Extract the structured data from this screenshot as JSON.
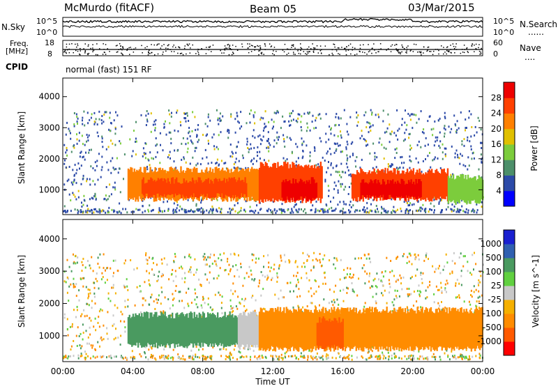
{
  "header": {
    "station": "McMurdo (fitACF)",
    "beam": "Beam 05",
    "date": "03/Mar/2015"
  },
  "strips": {
    "nsky_label": "N.Sky",
    "nsearch_label": "N.Search",
    "nsky_ticks": [
      "10^5",
      "10^0"
    ],
    "nsearch_ticks": [
      "10^5",
      "10^0"
    ],
    "freq_label": "Freq.",
    "freq_unit": "[MHz]",
    "freq_ticks": [
      "18",
      "8"
    ],
    "nave_label": "Nave",
    "nave_ticks": [
      "60",
      "0"
    ],
    "cpid_label": "CPID",
    "mode_text": "normal (fast) 151 RF",
    "dots": "......",
    "dots2": "...."
  },
  "colors": {
    "power": [
      "#0000ff",
      "#2c4aa8",
      "#4d8f6a",
      "#7ccc3c",
      "#e0c000",
      "#ff8000",
      "#ff4000",
      "#ee0000"
    ],
    "velocity": [
      "#ff0000",
      "#ff5a00",
      "#ff8c00",
      "#f5b000",
      "#c8c8c8",
      "#60d040",
      "#4a9a60",
      "#3060b0",
      "#1a20d0"
    ]
  },
  "chart_data": [
    {
      "type": "heatmap",
      "panel": "power",
      "ylabel": "Slant Range [km]",
      "ylim": [
        200,
        4600
      ],
      "yticks": [
        "1000",
        "2000",
        "3000",
        "4000"
      ],
      "xlim_hours": [
        0,
        24
      ],
      "colorbar_label": "Power [dB]",
      "colorbar_ticks": [
        "4",
        "8",
        "12",
        "16",
        "20",
        "24",
        "28"
      ],
      "bands": [
        {
          "x": [
            3.7,
            11.2
          ],
          "y": [
            700,
            1650
          ],
          "level": 5
        },
        {
          "x": [
            4.5,
            10.5
          ],
          "y": [
            800,
            1300
          ],
          "level": 6
        },
        {
          "x": [
            11.2,
            14.8
          ],
          "y": [
            650,
            1800
          ],
          "level": 6
        },
        {
          "x": [
            12.5,
            14.5
          ],
          "y": [
            700,
            1300
          ],
          "level": 7
        },
        {
          "x": [
            16.5,
            22.0
          ],
          "y": [
            700,
            1600
          ],
          "level": 6
        },
        {
          "x": [
            17.0,
            20.5
          ],
          "y": [
            750,
            1250
          ],
          "level": 7
        },
        {
          "x": [
            22.0,
            24.0
          ],
          "y": [
            600,
            1400
          ],
          "level": 3
        }
      ]
    },
    {
      "type": "heatmap",
      "panel": "velocity",
      "ylabel": "Slant Range [km]",
      "ylim": [
        200,
        4600
      ],
      "yticks": [
        "1000",
        "2000",
        "3000",
        "4000"
      ],
      "xlim_hours": [
        0,
        24
      ],
      "colorbar_label": "Velocity [m s^-1]",
      "colorbar_ticks": [
        "1000",
        "500",
        "100",
        "25",
        "-25",
        "-100",
        "-500",
        "-1000"
      ],
      "xticks": [
        "00:00",
        "04:00",
        "08:00",
        "12:00",
        "16:00",
        "20:00",
        "00:00"
      ],
      "xlabel": "Time UT",
      "bands": [
        {
          "x": [
            3.7,
            10.0
          ],
          "y": [
            700,
            1650
          ],
          "level": 6
        },
        {
          "x": [
            10.0,
            11.2
          ],
          "y": [
            650,
            1700
          ],
          "level": 4
        },
        {
          "x": [
            11.2,
            24.0
          ],
          "y": [
            600,
            1800
          ],
          "level": 2
        },
        {
          "x": [
            14.5,
            16.0
          ],
          "y": [
            650,
            1500
          ],
          "level": 1
        }
      ]
    }
  ]
}
